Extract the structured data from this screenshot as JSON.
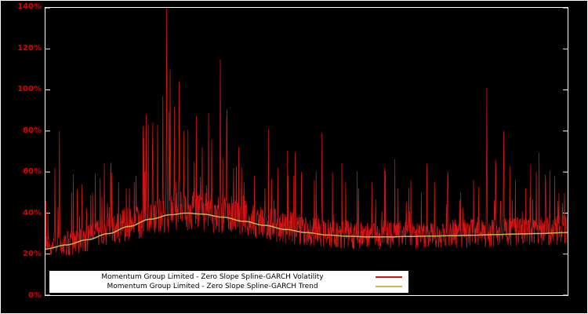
{
  "chart": {
    "background_color": "#000000",
    "frame_color": "#ffffff",
    "axis_label_color": "#e00000"
  },
  "chart_data": {
    "type": "line",
    "title": "",
    "xlabel": "",
    "ylabel": "",
    "ylim": [
      0,
      1.4
    ],
    "y_tick_step": 0.2,
    "y_tick_labels": [
      "0%",
      "20%",
      "40%",
      "60%",
      "80%",
      "100%",
      "120%",
      "140%"
    ],
    "grid": false,
    "legend_position": "bottom-inside",
    "series": [
      {
        "name": "Momentum Group Limited - Zero Slope Spline-GARCH Volatility",
        "color": "#d41414",
        "style": "noisy-line",
        "n_points": 1500,
        "noise": {
          "seed": 7,
          "band_low": 0.78,
          "band_span": 0.5,
          "burst_prob": 0.1,
          "burst_base": 1.05,
          "burst_span": 1.35
        },
        "spikes": [
          [
            0.018,
            0.62
          ],
          [
            0.027,
            0.8
          ],
          [
            0.05,
            0.5
          ],
          [
            0.07,
            0.54
          ],
          [
            0.09,
            0.5
          ],
          [
            0.105,
            0.57
          ],
          [
            0.125,
            0.6
          ],
          [
            0.14,
            0.55
          ],
          [
            0.155,
            0.52
          ],
          [
            0.17,
            0.55
          ],
          [
            0.19,
            0.6
          ],
          [
            0.205,
            0.68
          ],
          [
            0.215,
            0.83
          ],
          [
            0.225,
            0.97
          ],
          [
            0.232,
            1.4
          ],
          [
            0.239,
            1.1
          ],
          [
            0.247,
            0.92
          ],
          [
            0.256,
            1.04
          ],
          [
            0.265,
            0.8
          ],
          [
            0.285,
            0.65
          ],
          [
            0.3,
            0.72
          ],
          [
            0.318,
            0.76
          ],
          [
            0.335,
            1.15
          ],
          [
            0.347,
            0.84
          ],
          [
            0.36,
            0.62
          ],
          [
            0.38,
            0.55
          ],
          [
            0.4,
            0.58
          ],
          [
            0.42,
            0.52
          ],
          [
            0.445,
            0.62
          ],
          [
            0.465,
            0.58
          ],
          [
            0.49,
            0.6
          ],
          [
            0.515,
            0.56
          ],
          [
            0.53,
            0.79
          ],
          [
            0.55,
            0.6
          ],
          [
            0.575,
            0.55
          ],
          [
            0.6,
            0.52
          ],
          [
            0.625,
            0.55
          ],
          [
            0.65,
            0.62
          ],
          [
            0.675,
            0.52
          ],
          [
            0.7,
            0.56
          ],
          [
            0.72,
            0.5
          ],
          [
            0.745,
            0.55
          ],
          [
            0.77,
            0.52
          ],
          [
            0.795,
            0.5
          ],
          [
            0.82,
            0.55
          ],
          [
            0.845,
            1.01
          ],
          [
            0.862,
            0.66
          ],
          [
            0.878,
            0.8
          ],
          [
            0.9,
            0.56
          ],
          [
            0.92,
            0.52
          ],
          [
            0.94,
            0.6
          ],
          [
            0.958,
            0.55
          ],
          [
            0.975,
            0.58
          ],
          [
            0.99,
            0.45
          ]
        ]
      },
      {
        "name": "Momentum Group Limited - Zero Slope Spline-GARCH Trend",
        "color": "#bdbd4e",
        "style": "smooth-line",
        "keypoints": [
          [
            0,
            0.225
          ],
          [
            0.04,
            0.245
          ],
          [
            0.08,
            0.27
          ],
          [
            0.12,
            0.3
          ],
          [
            0.16,
            0.335
          ],
          [
            0.2,
            0.37
          ],
          [
            0.24,
            0.392
          ],
          [
            0.27,
            0.4
          ],
          [
            0.3,
            0.395
          ],
          [
            0.34,
            0.38
          ],
          [
            0.38,
            0.36
          ],
          [
            0.42,
            0.34
          ],
          [
            0.46,
            0.32
          ],
          [
            0.5,
            0.305
          ],
          [
            0.54,
            0.293
          ],
          [
            0.58,
            0.287
          ],
          [
            0.62,
            0.284
          ],
          [
            0.66,
            0.284
          ],
          [
            0.7,
            0.286
          ],
          [
            0.74,
            0.288
          ],
          [
            0.78,
            0.29
          ],
          [
            0.82,
            0.292
          ],
          [
            0.86,
            0.295
          ],
          [
            0.9,
            0.298
          ],
          [
            0.94,
            0.3
          ],
          [
            1,
            0.305
          ]
        ]
      }
    ]
  },
  "legend": {
    "background": "#ffffff",
    "text_color": "#000000",
    "entries": [
      {
        "label": "Momentum Group Limited - Zero Slope Spline-GARCH Volatility",
        "color": "#d41414"
      },
      {
        "label": "Momentum Group Limited - Zero Slope Spline-GARCH Trend",
        "color": "#bdbd4e"
      }
    ]
  }
}
